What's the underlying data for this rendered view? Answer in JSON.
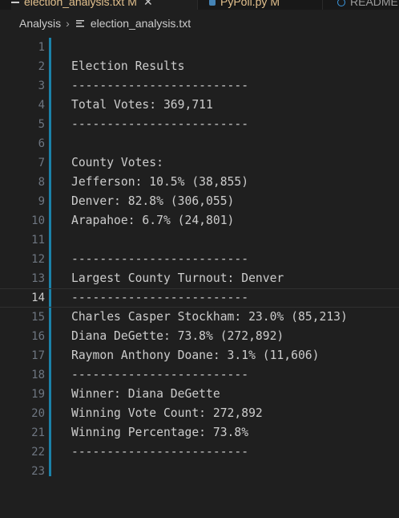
{
  "tabs": [
    {
      "label": "election_analysis.txt",
      "status": "M"
    },
    {
      "label": "PyPoll.py",
      "status": "M"
    },
    {
      "label": "README"
    }
  ],
  "breadcrumb": {
    "folder": "Analysis",
    "file": "election_analysis.txt"
  },
  "editor": {
    "current_line": 14,
    "lines": [
      {
        "num": "1",
        "text": ""
      },
      {
        "num": "2",
        "text": "Election Results"
      },
      {
        "num": "3",
        "text": "-------------------------"
      },
      {
        "num": "4",
        "text": "Total Votes: 369,711"
      },
      {
        "num": "5",
        "text": "-------------------------"
      },
      {
        "num": "6",
        "text": ""
      },
      {
        "num": "7",
        "text": "County Votes:"
      },
      {
        "num": "8",
        "text": "Jefferson: 10.5% (38,855)"
      },
      {
        "num": "9",
        "text": "Denver: 82.8% (306,055)"
      },
      {
        "num": "10",
        "text": "Arapahoe: 6.7% (24,801)"
      },
      {
        "num": "11",
        "text": ""
      },
      {
        "num": "12",
        "text": "-------------------------"
      },
      {
        "num": "13",
        "text": "Largest County Turnout: Denver"
      },
      {
        "num": "14",
        "text": "-------------------------"
      },
      {
        "num": "15",
        "text": "Charles Casper Stockham: 23.0% (85,213)"
      },
      {
        "num": "16",
        "text": "Diana DeGette: 73.8% (272,892)"
      },
      {
        "num": "17",
        "text": "Raymon Anthony Doane: 3.1% (11,606)"
      },
      {
        "num": "18",
        "text": "-------------------------"
      },
      {
        "num": "19",
        "text": "Winner: Diana DeGette"
      },
      {
        "num": "20",
        "text": "Winning Vote Count: 272,892"
      },
      {
        "num": "21",
        "text": "Winning Percentage: 73.8%"
      },
      {
        "num": "22",
        "text": "-------------------------"
      },
      {
        "num": "23",
        "text": ""
      }
    ]
  },
  "icons": {
    "breadcrumb_separator": "chevron-right-icon",
    "file": "text-file-icon"
  },
  "colors": {
    "background": "#1f1f1f",
    "text": "#cccccc",
    "line_number": "#6e7681",
    "modified_tab": "#e2c08d",
    "change_bar": "#1b81a8"
  }
}
